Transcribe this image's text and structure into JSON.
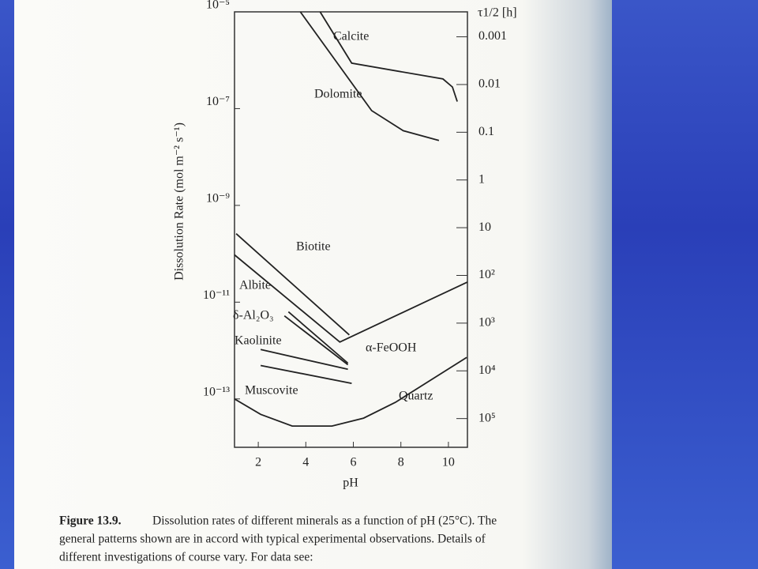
{
  "chart_data": {
    "type": "line",
    "log_scale": true,
    "ylabel": "Dissolution Rate (mol m⁻² s⁻¹)",
    "xlabel": "pH",
    "y2label": "τ1/2 [h]",
    "xlim": [
      1,
      10.8
    ],
    "xticks": [
      2,
      4,
      6,
      8,
      10
    ],
    "ylim": [
      1e-14,
      1e-05
    ],
    "yticks": [
      {
        "value": 1e-05,
        "label": "10⁻⁵"
      },
      {
        "value": 1e-07,
        "label": "10⁻⁷"
      },
      {
        "value": 1e-09,
        "label": "10⁻⁹"
      },
      {
        "value": 1e-11,
        "label": "10⁻¹¹"
      },
      {
        "value": 1e-13,
        "label": "10⁻¹³"
      }
    ],
    "y2lim": [
      0.0003,
      400000
    ],
    "y2ticks": [
      0.001,
      0.01,
      0.1,
      1,
      10,
      {
        "value": 100,
        "label": "10²"
      },
      {
        "value": 1000,
        "label": "10³"
      },
      {
        "value": 10000,
        "label": "10⁴"
      },
      {
        "value": 100000,
        "label": "10⁵"
      }
    ],
    "series": [
      {
        "name": "Calcite",
        "color": "#222",
        "x": [
          4.6,
          5.93,
          9.77,
          10.17,
          10.37
        ],
        "values": [
          1e-05,
          8.7e-07,
          4.1e-07,
          2.8e-07,
          1.4e-07
        ]
      },
      {
        "name": "Dolomite",
        "color": "#222",
        "x": [
          3.77,
          6.77,
          8.1,
          9.6
        ],
        "values": [
          1e-05,
          9.1e-08,
          3.5e-08,
          2.2e-08
        ]
      },
      {
        "name": "Biotite",
        "color": "#222",
        "x": [
          1.07,
          5.83
        ],
        "values": [
          2.6e-10,
          2.1e-12
        ]
      },
      {
        "name": "Albite",
        "color": "#222",
        "x": [
          1,
          5.43,
          10.8
        ],
        "values": [
          9.5e-11,
          1.5e-12,
          2.6e-11
        ]
      },
      {
        "name": "δ-Al₂O₃",
        "color": "#222",
        "x": [
          3.27,
          5.77
        ],
        "values": [
          6.3e-12,
          5.5e-13
        ]
      },
      {
        "name": "α-FeOOH",
        "color": "#222",
        "x": [
          3.1,
          5.77
        ],
        "values": [
          5.2e-12,
          5.1e-13
        ]
      },
      {
        "name": "Kaolinite",
        "color": "#222",
        "x": [
          2.1,
          5.77
        ],
        "values": [
          1.05e-12,
          4.1e-13
        ]
      },
      {
        "name": "Muscovite",
        "color": "#222",
        "x": [
          2.1,
          5.93
        ],
        "values": [
          4.9e-13,
          2.1e-13
        ]
      },
      {
        "name": "Quartz",
        "color": "#222",
        "x": [
          1,
          2.1,
          3.43,
          5.1,
          6.43,
          7.77,
          10.77
        ],
        "values": [
          1e-13,
          4.8e-14,
          2.75e-14,
          2.75e-14,
          4e-14,
          8.5e-14,
          7.2e-13
        ]
      }
    ]
  },
  "caption": {
    "label": "Figure 13.9.",
    "lines": [
      "Dissolution rates of different minerals as a function of pH (25°C). The",
      "general patterns shown are in accord with typical experimental observations. Details of",
      "different investigations of course vary. For data see:"
    ]
  }
}
